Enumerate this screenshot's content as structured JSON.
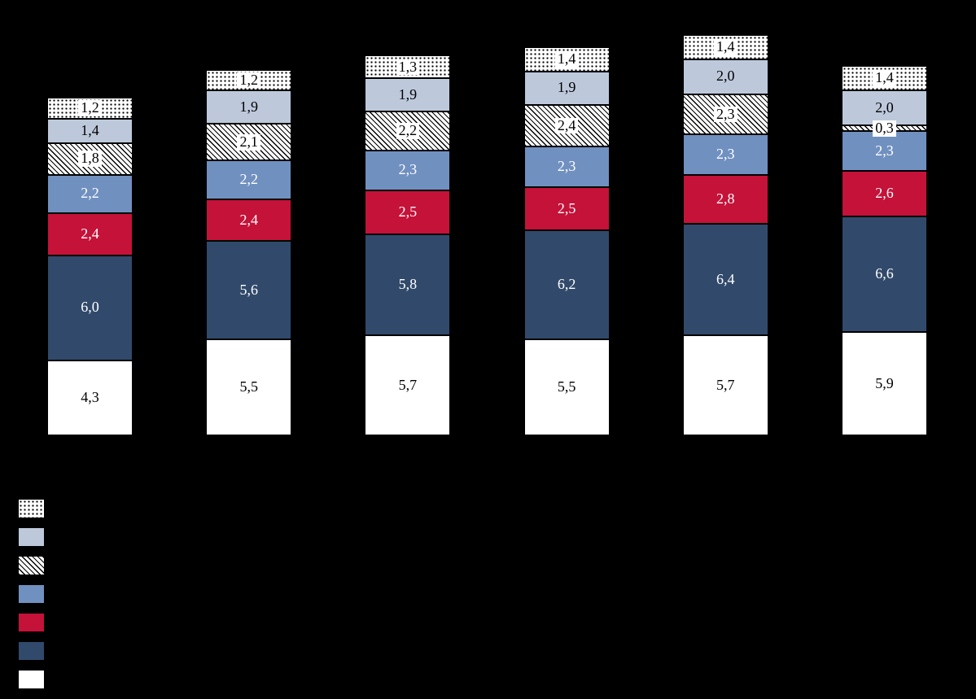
{
  "background_color": "#000000",
  "chart_data": {
    "type": "bar",
    "stacked": true,
    "orientation": "vertical",
    "decimal_separator": ",",
    "categories": [
      "",
      "",
      "",
      "",
      "",
      ""
    ],
    "axis_labels_visible": false,
    "legend_position": "bottom-left",
    "legend_text_visible": false,
    "series": [
      {
        "name": "dotted",
        "fill": "dots",
        "color": "#ffffff",
        "label_color": "#000000",
        "label_chip": true,
        "values": [
          1.2,
          1.2,
          1.3,
          1.4,
          1.4,
          1.4
        ],
        "labels": [
          "1,2",
          "1,2",
          "1,3",
          "1,4",
          "1,4",
          "1,4"
        ]
      },
      {
        "name": "light-blue",
        "fill": "solid",
        "color": "#bdc9db",
        "label_color": "#000000",
        "label_chip": false,
        "values": [
          1.4,
          1.9,
          1.9,
          1.9,
          2.0,
          2.0
        ],
        "labels": [
          "1,4",
          "1,9",
          "1,9",
          "1,9",
          "2,0",
          "2,0"
        ]
      },
      {
        "name": "hatched",
        "fill": "hatch",
        "color": "#ffffff",
        "label_color": "#000000",
        "label_chip": true,
        "values": [
          1.8,
          2.1,
          2.2,
          2.4,
          2.3,
          0.3
        ],
        "labels": [
          "1,8",
          "2,1",
          "2,2",
          "2,4",
          "2,3",
          "0,3"
        ]
      },
      {
        "name": "medium-blue",
        "fill": "solid",
        "color": "#7090c0",
        "label_color": "#ffffff",
        "label_chip": false,
        "values": [
          2.2,
          2.2,
          2.3,
          2.3,
          2.3,
          2.3
        ],
        "labels": [
          "2,2",
          "2,2",
          "2,3",
          "2,3",
          "2,3",
          "2,3"
        ]
      },
      {
        "name": "red",
        "fill": "solid",
        "color": "#c41239",
        "label_color": "#ffffff",
        "label_chip": false,
        "values": [
          2.4,
          2.4,
          2.5,
          2.5,
          2.8,
          2.6
        ],
        "labels": [
          "2,4",
          "2,4",
          "2,5",
          "2,5",
          "2,8",
          "2,6"
        ]
      },
      {
        "name": "dark-blue",
        "fill": "solid",
        "color": "#314a6b",
        "label_color": "#ffffff",
        "label_chip": false,
        "values": [
          6.0,
          5.6,
          5.8,
          6.2,
          6.4,
          6.6
        ],
        "labels": [
          "6,0",
          "5,6",
          "5,8",
          "6,2",
          "6,4",
          "6,6"
        ]
      },
      {
        "name": "white",
        "fill": "solid",
        "color": "#ffffff",
        "label_color": "#000000",
        "label_chip": false,
        "values": [
          4.3,
          5.5,
          5.7,
          5.5,
          5.7,
          5.9
        ],
        "labels": [
          "4,3",
          "5,5",
          "5,7",
          "5,5",
          "5,7",
          "5,9"
        ]
      }
    ]
  }
}
